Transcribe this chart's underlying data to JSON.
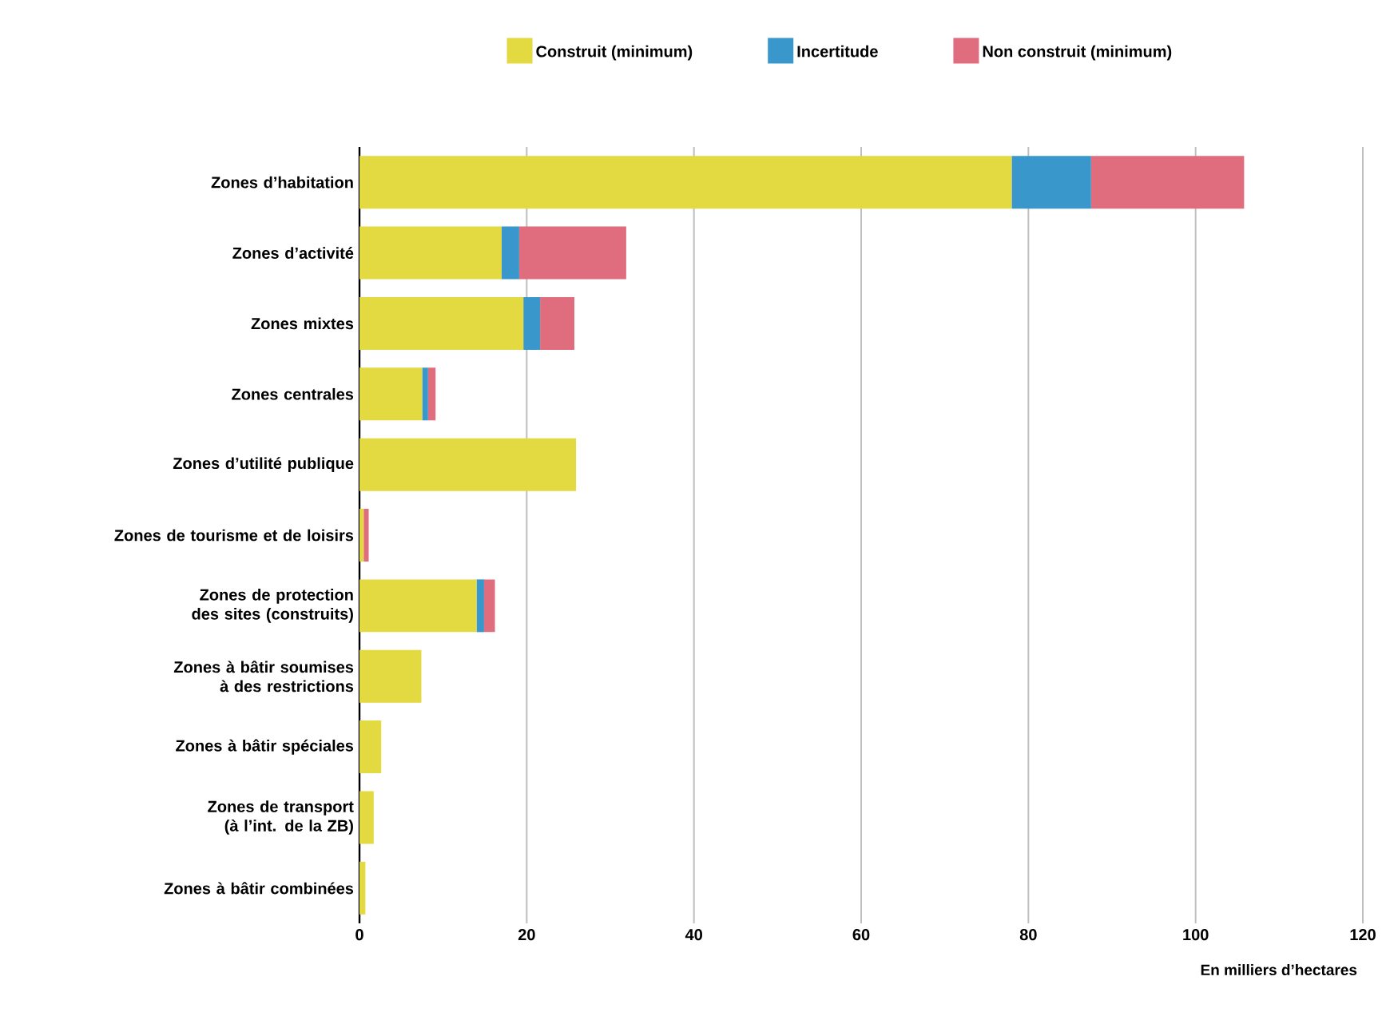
{
  "chart_data": {
    "type": "bar",
    "orientation": "horizontal",
    "stacked": true,
    "categories": [
      "Zones d’habitation",
      "Zones d’activité",
      "Zones mixtes",
      "Zones centrales",
      "Zones d’utilité publique",
      "Zones de tourisme et de loisirs",
      "Zones de protection des sites (construits)",
      "Zones à bâtir soumises à des restrictions",
      "Zones à bâtir spéciales",
      "Zones de transport (à l’int. de la ZB)",
      "Zones à bâtir combinées"
    ],
    "series": [
      {
        "name": "Construit (minimum)",
        "color": "#e3d940",
        "values": [
          78,
          17,
          19.6,
          7.5,
          25.9,
          0.5,
          14,
          7.4,
          2.6,
          1.7,
          0.7
        ]
      },
      {
        "name": "Incertitude",
        "color": "#3a97cc",
        "values": [
          9.5,
          2.1,
          2,
          0.7,
          0,
          0,
          0.9,
          0,
          0,
          0,
          0
        ]
      },
      {
        "name": "Non construit (minimum)",
        "color": "#df6d7e",
        "values": [
          18.3,
          12.8,
          4.1,
          0.9,
          0,
          0.6,
          1.3,
          0,
          0,
          0,
          0
        ]
      }
    ],
    "xlabel": "En milliers d’hectares",
    "xlim": [
      0,
      120
    ],
    "xticks": [
      0,
      20,
      40,
      60,
      80,
      100,
      120
    ],
    "grid": "x",
    "legend": "top"
  }
}
